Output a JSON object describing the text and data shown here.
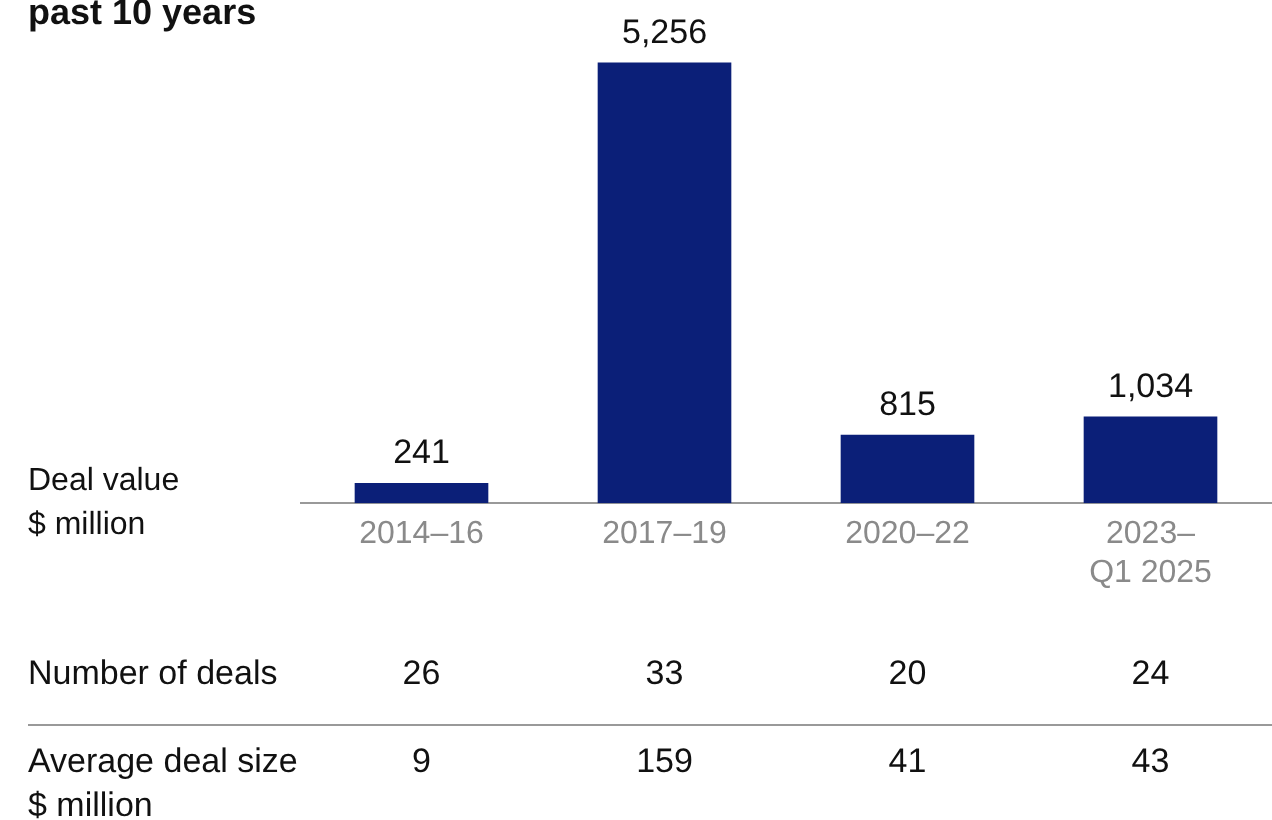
{
  "chart_data": {
    "type": "bar",
    "title": "past 10 years",
    "ylabel": "Deal value\n$ million",
    "categories": [
      "2014–16",
      "2017–19",
      "2020–22",
      "2023–Q1 2025"
    ],
    "values": [
      241,
      5256,
      815,
      1034
    ],
    "value_labels": [
      "241",
      "5,256",
      "815",
      "1,034"
    ],
    "color": "#0b1f78",
    "grid": false,
    "legend": false,
    "annotations": [
      "Number of deals",
      "26",
      "33",
      "20",
      "24",
      "Average deal size\n$ million",
      "9",
      "159",
      "41",
      "43"
    ]
  }
}
